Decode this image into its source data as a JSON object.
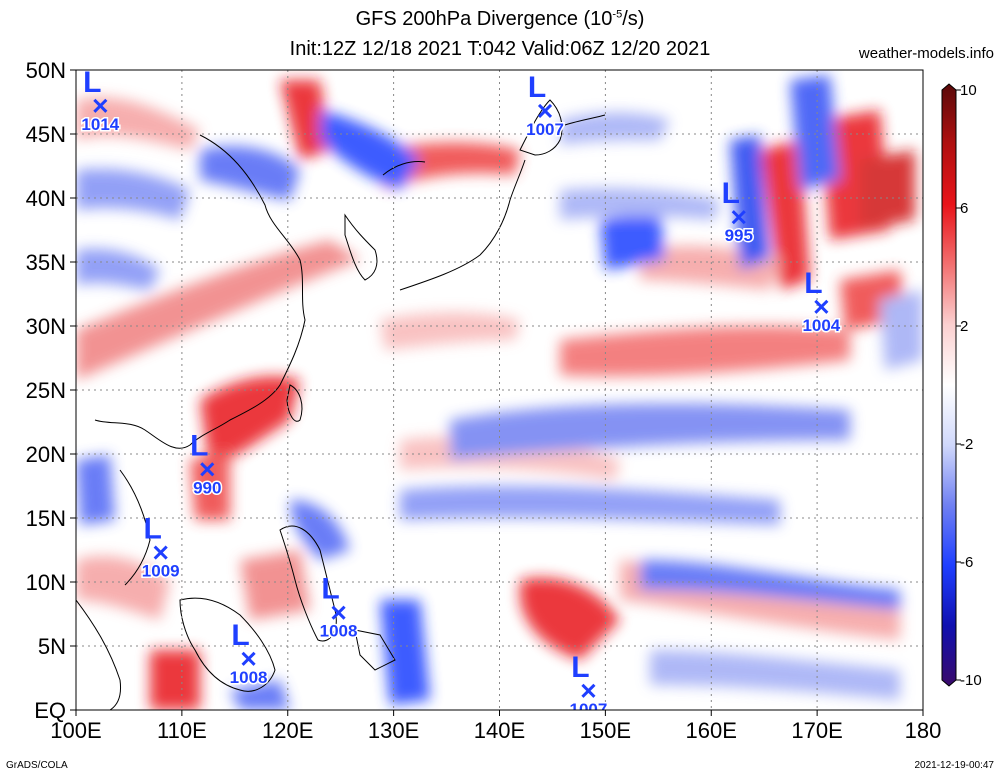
{
  "header": {
    "title_line1": "GFS 200hPa Divergence (10",
    "title_exp": "-5",
    "title_unit": "/s)",
    "title_line2": "Init:12Z 12/18 2021 T:042 Valid:06Z 12/20 2021",
    "site": "weather-models.info"
  },
  "footer": {
    "left": "GrADS/COLA",
    "right": "2021-12-19-00:47"
  },
  "map": {
    "x_axis": {
      "range": [
        100,
        180
      ],
      "labels": [
        "100E",
        "110E",
        "120E",
        "130E",
        "140E",
        "150E",
        "160E",
        "170E",
        "180"
      ]
    },
    "y_axis": {
      "range": [
        0,
        50
      ],
      "labels": [
        "EQ",
        "5N",
        "10N",
        "15N",
        "20N",
        "25N",
        "30N",
        "35N",
        "40N",
        "45N",
        "50N"
      ]
    },
    "colors": {
      "pos": "#e8141a",
      "neg": "#1f3fff",
      "low": "#1f3fff"
    },
    "lows": [
      {
        "lon": 102.3,
        "lat": 47.2,
        "pressure": "1014"
      },
      {
        "lon": 144.3,
        "lat": 46.8,
        "pressure": "1007"
      },
      {
        "lon": 162.6,
        "lat": 38.5,
        "pressure": "995"
      },
      {
        "lon": 170.4,
        "lat": 31.5,
        "pressure": "1004"
      },
      {
        "lon": 112.4,
        "lat": 18.8,
        "pressure": "990"
      },
      {
        "lon": 108.0,
        "lat": 12.3,
        "pressure": "1009"
      },
      {
        "lon": 124.8,
        "lat": 7.6,
        "pressure": "1008"
      },
      {
        "lon": 116.3,
        "lat": 4.0,
        "pressure": "1008"
      },
      {
        "lon": 148.4,
        "lat": 1.5,
        "pressure": "1007"
      }
    ]
  },
  "colorbar": {
    "labels": [
      "10",
      "6",
      "2",
      "-2",
      "-6",
      "-10"
    ],
    "stops": [
      "#5a0a0a",
      "#b01010",
      "#e8141a",
      "#f27070",
      "#fbd0d0",
      "#ffffff",
      "#d0d8fb",
      "#7080f2",
      "#1f3fff",
      "#1010b0",
      "#3a0a6a"
    ]
  }
}
